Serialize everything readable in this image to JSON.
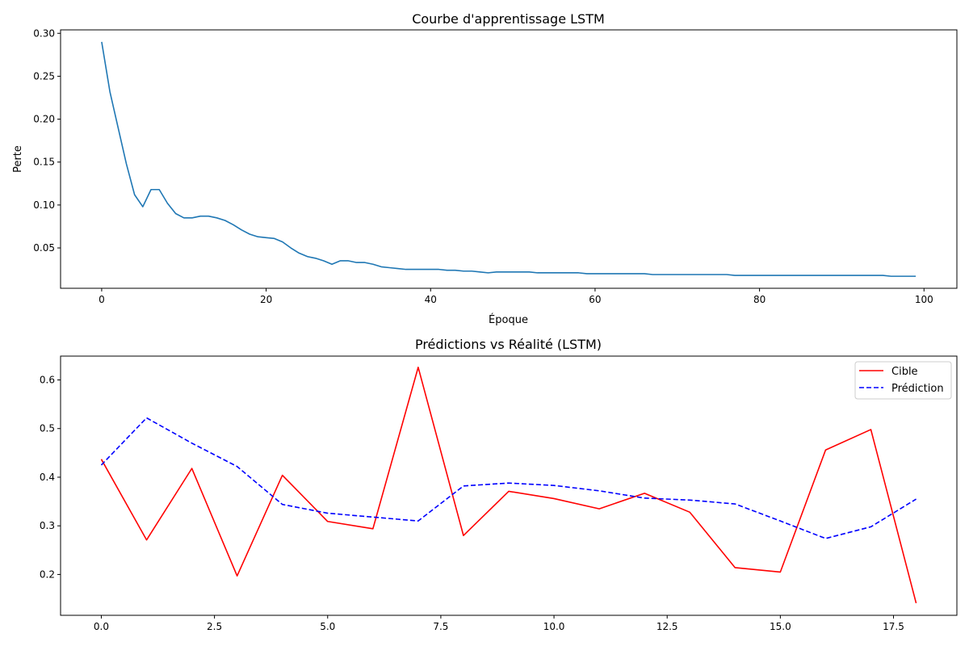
{
  "chart_data": [
    {
      "type": "line",
      "title": "Courbe d'apprentissage LSTM",
      "xlabel": "Époque",
      "ylabel": "Perte",
      "xlim": [
        -5,
        104
      ],
      "ylim": [
        0.003,
        0.304
      ],
      "xticks": [
        0,
        20,
        40,
        60,
        80,
        100
      ],
      "xtick_labels": [
        "0",
        "20",
        "40",
        "60",
        "80",
        "100"
      ],
      "yticks": [
        0.05,
        0.1,
        0.15,
        0.2,
        0.25,
        0.3
      ],
      "ytick_labels": [
        "0.05",
        "0.10",
        "0.15",
        "0.20",
        "0.25",
        "0.30"
      ],
      "grid": false,
      "legend": null,
      "series": [
        {
          "color": "#1f77b4",
          "style": "solid",
          "x": [
            0,
            1,
            2,
            3,
            4,
            5,
            6,
            7,
            8,
            9,
            10,
            11,
            12,
            13,
            14,
            15,
            16,
            17,
            18,
            19,
            20,
            21,
            22,
            23,
            24,
            25,
            26,
            27,
            28,
            29,
            30,
            31,
            32,
            33,
            34,
            35,
            36,
            37,
            38,
            39,
            40,
            41,
            42,
            43,
            44,
            45,
            46,
            47,
            48,
            49,
            50,
            51,
            52,
            53,
            54,
            55,
            56,
            57,
            58,
            59,
            60,
            61,
            62,
            63,
            64,
            65,
            66,
            67,
            68,
            69,
            70,
            71,
            72,
            73,
            74,
            75,
            76,
            77,
            78,
            79,
            80,
            81,
            82,
            83,
            84,
            85,
            86,
            87,
            88,
            89,
            90,
            91,
            92,
            93,
            94,
            95,
            96,
            97,
            98,
            99
          ],
          "values": [
            0.29,
            0.232,
            0.19,
            0.148,
            0.112,
            0.098,
            0.118,
            0.118,
            0.102,
            0.09,
            0.085,
            0.085,
            0.087,
            0.087,
            0.085,
            0.082,
            0.077,
            0.071,
            0.066,
            0.063,
            0.062,
            0.061,
            0.057,
            0.05,
            0.044,
            0.04,
            0.038,
            0.035,
            0.031,
            0.035,
            0.035,
            0.033,
            0.033,
            0.031,
            0.028,
            0.027,
            0.026,
            0.025,
            0.025,
            0.025,
            0.025,
            0.025,
            0.024,
            0.024,
            0.023,
            0.023,
            0.022,
            0.021,
            0.022,
            0.022,
            0.022,
            0.022,
            0.022,
            0.021,
            0.021,
            0.021,
            0.021,
            0.021,
            0.021,
            0.02,
            0.02,
            0.02,
            0.02,
            0.02,
            0.02,
            0.02,
            0.02,
            0.019,
            0.019,
            0.019,
            0.019,
            0.019,
            0.019,
            0.019,
            0.019,
            0.019,
            0.019,
            0.018,
            0.018,
            0.018,
            0.018,
            0.018,
            0.018,
            0.018,
            0.018,
            0.018,
            0.018,
            0.018,
            0.018,
            0.018,
            0.018,
            0.018,
            0.018,
            0.018,
            0.018,
            0.018,
            0.017,
            0.017,
            0.017,
            0.017
          ]
        }
      ]
    },
    {
      "type": "line",
      "title": "Prédictions vs Réalité (LSTM)",
      "xlabel": "",
      "ylabel": "",
      "xlim": [
        -0.9,
        18.9
      ],
      "ylim": [
        0.116,
        0.649
      ],
      "xticks": [
        0,
        2.5,
        5,
        7.5,
        10,
        12.5,
        15,
        17.5
      ],
      "xtick_labels": [
        "0.0",
        "2.5",
        "5.0",
        "7.5",
        "10.0",
        "12.5",
        "15.0",
        "17.5"
      ],
      "yticks": [
        0.2,
        0.3,
        0.4,
        0.5,
        0.6
      ],
      "ytick_labels": [
        "0.2",
        "0.3",
        "0.4",
        "0.5",
        "0.6"
      ],
      "grid": false,
      "legend": "top-right",
      "series": [
        {
          "name": "Cible",
          "color": "#ff0000",
          "style": "solid",
          "x": [
            0,
            1,
            2,
            3,
            4,
            5,
            6,
            7,
            8,
            9,
            10,
            11,
            12,
            13,
            14,
            15,
            16,
            17,
            18
          ],
          "values": [
            0.437,
            0.271,
            0.418,
            0.197,
            0.404,
            0.309,
            0.294,
            0.626,
            0.28,
            0.371,
            0.356,
            0.335,
            0.367,
            0.328,
            0.214,
            0.205,
            0.456,
            0.498,
            0.141
          ]
        },
        {
          "name": "Prédiction",
          "color": "#0000ff",
          "style": "dashed",
          "x": [
            0,
            1,
            2,
            3,
            4,
            5,
            6,
            7,
            8,
            9,
            10,
            11,
            12,
            13,
            14,
            15,
            16,
            17,
            18
          ],
          "values": [
            0.425,
            0.522,
            0.47,
            0.422,
            0.344,
            0.326,
            0.318,
            0.31,
            0.382,
            0.388,
            0.383,
            0.372,
            0.357,
            0.353,
            0.345,
            0.31,
            0.274,
            0.298,
            0.355
          ]
        }
      ]
    }
  ]
}
